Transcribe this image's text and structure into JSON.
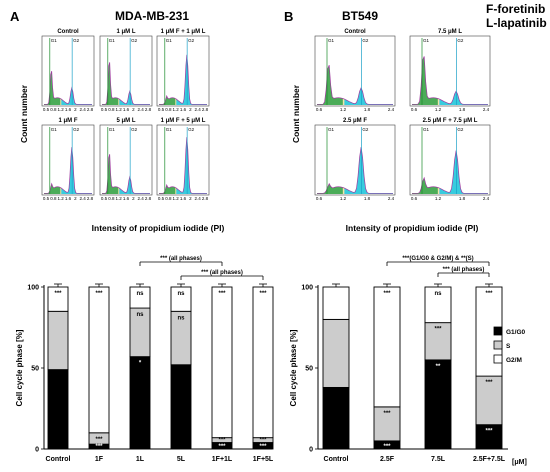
{
  "panels": {
    "A": {
      "letter": "A",
      "title": "MDA-MB-231"
    },
    "B": {
      "letter": "B",
      "title": "BT549",
      "abbrev": [
        "F-foretinib",
        "L-lapatinib"
      ]
    }
  },
  "histogram_axes": {
    "ylabel": "Count number",
    "xlabel": "Intensity of propidium iodide (PI)",
    "gate_labels": [
      "G1",
      "G2"
    ],
    "xticks_A": [
      "0.5",
      "0.8",
      "1.2",
      "1.6",
      "2",
      "2.4",
      "2.8"
    ],
    "xticks_B": [
      "0.6",
      "1.2",
      "1.8",
      "2.4"
    ]
  },
  "chart_data": [
    {
      "type": "bar",
      "stacked": true,
      "panel": "A",
      "title": "",
      "xlabel": "",
      "ylabel": "Cell cycle phase [%]",
      "ylim": [
        0,
        100
      ],
      "yticks": [
        "0",
        "50",
        "100"
      ],
      "categories": [
        "Control",
        "1F",
        "1L",
        "5L",
        "1F+1L",
        "1F+5L"
      ],
      "series": [
        {
          "name": "G1/G0",
          "color": "#000000",
          "values": [
            49,
            3,
            57,
            52,
            4,
            4
          ]
        },
        {
          "name": "S",
          "color": "#cccccc",
          "values": [
            36,
            7,
            30,
            33,
            3,
            3
          ]
        },
        {
          "name": "G2/M",
          "color": "#ffffff",
          "values": [
            15,
            90,
            13,
            15,
            93,
            93
          ]
        }
      ],
      "annotations": {
        "inside": [
          [
            "",
            "",
            "***"
          ],
          [
            "***",
            "***",
            "***"
          ],
          [
            "*",
            "ns",
            "ns"
          ],
          [
            "",
            "ns",
            "ns"
          ],
          [
            "***",
            "***",
            "***"
          ],
          [
            "***",
            "***",
            "***"
          ]
        ],
        "brackets": [
          "*** (all phases)",
          "*** (all phases)"
        ]
      }
    },
    {
      "type": "bar",
      "stacked": true,
      "panel": "B",
      "title": "",
      "xlabel": "",
      "ylabel": "Cell cycle phase [%]",
      "ylim": [
        0,
        100
      ],
      "yticks": [
        "0",
        "50",
        "100"
      ],
      "categories": [
        "Control",
        "2.5F",
        "7.5L",
        "2.5F+7.5L"
      ],
      "unit_label": "[μM]",
      "series": [
        {
          "name": "G1/G0",
          "color": "#000000",
          "values": [
            38,
            5,
            55,
            15
          ]
        },
        {
          "name": "S",
          "color": "#cccccc",
          "values": [
            42,
            21,
            23,
            30
          ]
        },
        {
          "name": "G2/M",
          "color": "#ffffff",
          "values": [
            20,
            74,
            22,
            55
          ]
        }
      ],
      "legend": {
        "placement": "right",
        "items": [
          "G1/G0",
          "S",
          "G2/M"
        ]
      },
      "annotations": {
        "inside": [
          [
            "",
            "",
            ""
          ],
          [
            "***",
            "***",
            "***"
          ],
          [
            "**",
            "***",
            "ns"
          ],
          [
            "***",
            "***",
            "***"
          ]
        ],
        "brackets": [
          "***(G1/G0 & G2/M) & **(S)",
          "*** (all phases)"
        ]
      }
    }
  ],
  "histograms": {
    "A": [
      {
        "label": "Control",
        "g1": 0.5,
        "g2": 0.25
      },
      {
        "label": "1 μM L",
        "g1": 0.65,
        "g2": 0.2
      },
      {
        "label": "1 μM F + 1 μM L",
        "g1": 0.08,
        "g2": 0.75
      },
      {
        "label": "1 μM F",
        "g1": 0.1,
        "g2": 0.7
      },
      {
        "label": "5 μM L",
        "g1": 0.6,
        "g2": 0.25
      },
      {
        "label": "1 μM F + 5 μM L",
        "g1": 0.08,
        "g2": 0.85
      }
    ],
    "B": [
      {
        "label": "Control",
        "g1": 0.6,
        "g2": 0.25
      },
      {
        "label": "7.5 μM L",
        "g1": 0.75,
        "g2": 0.2
      },
      {
        "label": "2.5 μM F",
        "g1": 0.1,
        "g2": 0.7
      },
      {
        "label": "2.5 μM F + 7.5 μM L",
        "g1": 0.2,
        "g2": 0.65
      }
    ]
  }
}
